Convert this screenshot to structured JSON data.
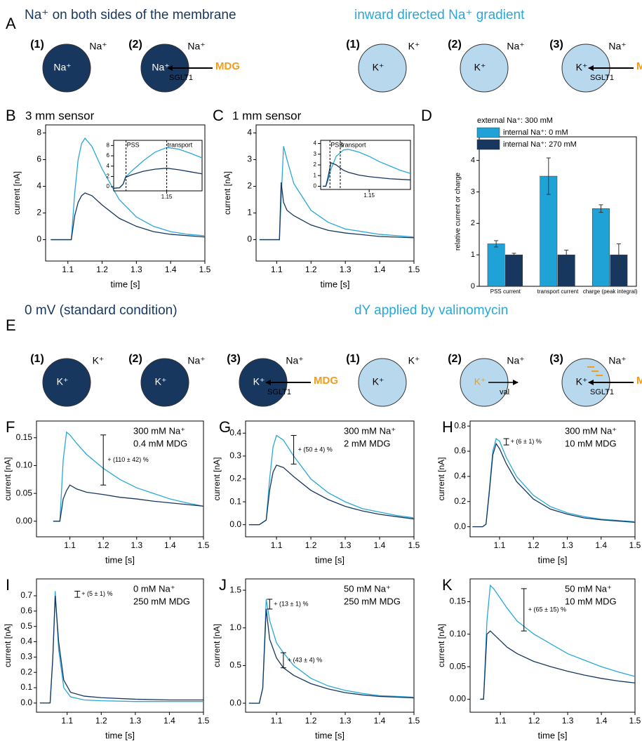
{
  "diagram_rows": [
    {
      "label": "A",
      "groups": [
        {
          "title": "Na⁺ on both sides of the membrane",
          "title_color": "#17375e",
          "cells": [
            {
              "number": "(1)",
              "outside": "Na⁺",
              "inside": "Na⁺",
              "fill": "#17375e",
              "inside_color": "#ffffff"
            },
            {
              "number": "(2)",
              "outside": "Na⁺",
              "inside": "Na⁺",
              "fill": "#17375e",
              "inside_color": "#ffffff",
              "substrate": "MDG",
              "carrier": "SGLT1"
            }
          ]
        },
        {
          "title": "inward directed Na⁺ gradient",
          "title_color": "#29a8d8",
          "cells": [
            {
              "number": "(1)",
              "outside": "K⁺",
              "inside": "K⁺",
              "fill": "#b8d8ee",
              "inside_color": "#000000"
            },
            {
              "number": "(2)",
              "outside": "Na⁺",
              "inside": "K⁺",
              "fill": "#b8d8ee",
              "inside_color": "#000000"
            },
            {
              "number": "(3)",
              "outside": "Na⁺",
              "inside": "K⁺",
              "fill": "#b8d8ee",
              "inside_color": "#000000",
              "substrate": "MDG",
              "carrier": "SGLT1"
            }
          ]
        }
      ]
    },
    {
      "label": "E",
      "groups": [
        {
          "title": "0 mV (standard condition)",
          "title_color": "#17375e",
          "cells": [
            {
              "number": "(1)",
              "outside": "K⁺",
              "inside": "K⁺",
              "fill": "#17375e",
              "inside_color": "#ffffff"
            },
            {
              "number": "(2)",
              "outside": "Na⁺",
              "inside": "K⁺",
              "fill": "#17375e",
              "inside_color": "#ffffff"
            },
            {
              "number": "(3)",
              "outside": "Na⁺",
              "inside": "K⁺",
              "fill": "#17375e",
              "inside_color": "#ffffff",
              "substrate": "MDG",
              "carrier": "SGLT1"
            }
          ]
        },
        {
          "title": "dY applied by valinomycin",
          "title_color": "#29a8d8",
          "cells": [
            {
              "number": "(1)",
              "outside": "K⁺",
              "inside": "K⁺",
              "fill": "#b8d8ee",
              "inside_color": "#000000"
            },
            {
              "number": "(2)",
              "outside": "Na⁺",
              "inside": "K⁺",
              "fill": "#b8d8ee",
              "inside_color": "#f39c1a",
              "carrier": "val",
              "direction": "out"
            },
            {
              "number": "(3)",
              "outside": "Na⁺",
              "inside": "K⁺",
              "fill": "#b8d8ee",
              "inside_color": "#000000",
              "substrate": "MDG",
              "carrier": "SGLT1",
              "surface_charge_color": "#f39c1a"
            }
          ]
        }
      ]
    }
  ],
  "substrate_color": "#f39c1a",
  "chart_data": [
    {
      "type": "line",
      "label": "B",
      "title": "3 mm sensor",
      "xlabel": "time [s]",
      "ylabel": "current [nA]",
      "xlim": [
        1.035,
        1.5
      ],
      "ylim": [
        -1.6,
        8.6
      ],
      "xticks": [
        1.1,
        1.2,
        1.3,
        1.4,
        1.5
      ],
      "yticks": [
        0,
        2,
        4,
        6,
        8
      ],
      "x": [
        1.05,
        1.1,
        1.11,
        1.12,
        1.13,
        1.14,
        1.15,
        1.17,
        1.2,
        1.25,
        1.3,
        1.35,
        1.4,
        1.45,
        1.5
      ],
      "series": [
        {
          "color": "#29a8d8",
          "values": [
            0,
            0,
            0,
            3.5,
            6,
            7.2,
            7.6,
            7,
            5.3,
            3,
            1.7,
            1,
            0.6,
            0.4,
            0.3
          ]
        },
        {
          "color": "#17375e",
          "values": [
            0,
            0,
            0,
            1.8,
            2.8,
            3.3,
            3.5,
            3.3,
            2.6,
            1.6,
            1,
            0.6,
            0.4,
            0.3,
            0.2
          ]
        }
      ],
      "inset": {
        "type": "line",
        "xlim": [
          1.105,
          1.18
        ],
        "ylim": [
          -0.8,
          9
        ],
        "xticks": [
          1.15
        ],
        "yticks": [
          0,
          2,
          4,
          6,
          8
        ],
        "x": [
          1.105,
          1.11,
          1.113,
          1.115,
          1.12,
          1.13,
          1.14,
          1.15,
          1.16,
          1.17,
          1.18
        ],
        "series": [
          {
            "color": "#29a8d8",
            "values": [
              -0.3,
              -0.2,
              0.5,
              1.8,
              3,
              5,
              6.7,
              7.6,
              7.3,
              6.5,
              5.6
            ]
          },
          {
            "color": "#17375e",
            "values": [
              -0.3,
              -0.2,
              0.5,
              1.8,
              2.3,
              3,
              3.4,
              3.6,
              3.3,
              2.9,
              2.5
            ]
          }
        ],
        "vlines": [
          {
            "x": 1.1155,
            "text": "PSS"
          },
          {
            "x": 1.15,
            "text": "transport"
          }
        ]
      }
    },
    {
      "type": "line",
      "label": "C",
      "title": "1 mm sensor",
      "xlabel": "time [s]",
      "ylabel": "current [nA]",
      "xlim": [
        1.04,
        1.5
      ],
      "ylim": [
        -0.8,
        4.3
      ],
      "xticks": [
        1.1,
        1.2,
        1.3,
        1.4,
        1.5
      ],
      "yticks": [
        0,
        1,
        2,
        3,
        4
      ],
      "x": [
        1.05,
        1.1,
        1.108,
        1.113,
        1.12,
        1.13,
        1.15,
        1.2,
        1.25,
        1.3,
        1.4,
        1.5
      ],
      "series": [
        {
          "color": "#29a8d8",
          "values": [
            0,
            0,
            0,
            1.5,
            3.5,
            3.0,
            2.1,
            1.1,
            0.65,
            0.4,
            0.2,
            0.1
          ]
        },
        {
          "color": "#17375e",
          "values": [
            0,
            0,
            0,
            2.15,
            1.4,
            1.1,
            0.9,
            0.55,
            0.35,
            0.25,
            0.12,
            0.07
          ]
        }
      ],
      "inset": {
        "type": "line",
        "xlim": [
          1.103,
          1.19
        ],
        "ylim": [
          -0.3,
          4.3
        ],
        "xticks": [
          1.15
        ],
        "yticks": [
          0,
          1,
          2,
          3,
          4
        ],
        "x": [
          1.105,
          1.108,
          1.11,
          1.113,
          1.118,
          1.125,
          1.13,
          1.14,
          1.15,
          1.16,
          1.17,
          1.18,
          1.19
        ],
        "series": [
          {
            "color": "#29a8d8",
            "values": [
              0,
              0,
              0.5,
              1.6,
              2.8,
              3.4,
              3.45,
              3.2,
              2.8,
              2.3,
              1.9,
              1.5,
              1.2
            ]
          },
          {
            "color": "#17375e",
            "values": [
              0,
              0,
              0.8,
              2.2,
              2.0,
              1.5,
              1.3,
              1.05,
              0.9,
              0.8,
              0.7,
              0.65,
              0.6
            ]
          }
        ],
        "vlines": [
          {
            "x": 1.112,
            "text": "PSS"
          },
          {
            "x": 1.122,
            "text": "transport"
          }
        ]
      }
    },
    {
      "type": "bar",
      "label": "D",
      "ylabel": "relative current or charge",
      "legend_title": "external Na⁺: 300 mM",
      "categories": [
        "PSS current",
        "transport current",
        "charge (peak integral)"
      ],
      "ylim": [
        0,
        4.75
      ],
      "yticks": [
        0,
        1,
        2,
        3,
        4
      ],
      "series": [
        {
          "name": "internal Na⁺: 0 mM",
          "color": "#1fa3d6",
          "values": [
            1.35,
            3.5,
            2.47
          ],
          "errors": [
            0.1,
            0.58,
            0.12
          ]
        },
        {
          "name": "internal Na⁺: 270 mM",
          "color": "#17375e",
          "values": [
            1.0,
            1.0,
            1.0
          ],
          "errors": [
            0.05,
            0.15,
            0.35
          ]
        }
      ]
    },
    {
      "type": "line",
      "label": "F",
      "xlabel": "time [s]",
      "ylabel": "current [nA]",
      "conditions": [
        "300 mM Na⁺",
        "0.4 mM MDG"
      ],
      "xlim": [
        1.0,
        1.5
      ],
      "ylim": [
        -0.028,
        0.18
      ],
      "xticks": [
        1.1,
        1.2,
        1.3,
        1.4,
        1.5
      ],
      "yticks": [
        {
          "value": 0,
          "label": "0.00"
        },
        0.05,
        {
          "value": 0.1,
          "label": "0.10"
        },
        0.15
      ],
      "x": [
        1.05,
        1.07,
        1.08,
        1.09,
        1.1,
        1.12,
        1.15,
        1.2,
        1.25,
        1.3,
        1.35,
        1.4,
        1.45,
        1.5
      ],
      "series": [
        {
          "color": "#29a8d8",
          "values": [
            0,
            0,
            0.11,
            0.16,
            0.155,
            0.14,
            0.12,
            0.095,
            0.075,
            0.06,
            0.05,
            0.04,
            0.033,
            0.027
          ]
        },
        {
          "color": "#17375e",
          "values": [
            0,
            0,
            0.04,
            0.055,
            0.065,
            0.058,
            0.052,
            0.048,
            0.043,
            0.04,
            0.036,
            0.033,
            0.03,
            0.027
          ]
        }
      ],
      "annotations": [
        {
          "x": 1.2,
          "low": 0.065,
          "high": 0.155,
          "text": "+ (110 ± 42) %"
        }
      ]
    },
    {
      "type": "line",
      "label": "G",
      "xlabel": "time [s]",
      "ylabel": "current [nA]",
      "conditions": [
        "300 mM Na⁺",
        "2 mM MDG"
      ],
      "xlim": [
        1.01,
        1.5
      ],
      "ylim": [
        -0.053,
        0.453
      ],
      "xticks": [
        1.1,
        1.2,
        1.3,
        1.4,
        1.5
      ],
      "yticks": [
        {
          "value": 0,
          "label": "0.0"
        },
        0.1,
        0.2,
        0.3,
        0.4
      ],
      "x": [
        1.02,
        1.05,
        1.07,
        1.08,
        1.09,
        1.1,
        1.12,
        1.15,
        1.2,
        1.25,
        1.3,
        1.35,
        1.4,
        1.45,
        1.5
      ],
      "series": [
        {
          "color": "#29a8d8",
          "values": [
            0,
            0,
            0.02,
            0.2,
            0.34,
            0.39,
            0.37,
            0.3,
            0.2,
            0.14,
            0.1,
            0.07,
            0.055,
            0.04,
            0.03
          ]
        },
        {
          "color": "#17375e",
          "values": [
            0,
            0,
            0.02,
            0.15,
            0.23,
            0.26,
            0.25,
            0.21,
            0.15,
            0.11,
            0.08,
            0.06,
            0.045,
            0.035,
            0.025
          ]
        }
      ],
      "annotations": [
        {
          "x": 1.15,
          "low": 0.265,
          "high": 0.39,
          "text": "+ (50 ± 4) %"
        }
      ]
    },
    {
      "type": "line",
      "label": "H",
      "xlabel": "time [s]",
      "ylabel": "current [nA]",
      "conditions": [
        "300 mM Na⁺",
        "10 mM MDG"
      ],
      "xlim": [
        1.013,
        1.5
      ],
      "ylim": [
        -0.08,
        0.84
      ],
      "xticks": [
        1.1,
        1.2,
        1.3,
        1.4,
        1.5
      ],
      "yticks": [
        {
          "value": 0,
          "label": "0.0"
        },
        0.2,
        0.4,
        0.6,
        0.8
      ],
      "x": [
        1.02,
        1.05,
        1.06,
        1.07,
        1.08,
        1.09,
        1.1,
        1.12,
        1.15,
        1.2,
        1.25,
        1.3,
        1.35,
        1.4,
        1.45,
        1.5
      ],
      "series": [
        {
          "color": "#29a8d8",
          "values": [
            0,
            0,
            0.02,
            0.3,
            0.6,
            0.7,
            0.68,
            0.55,
            0.4,
            0.25,
            0.16,
            0.11,
            0.08,
            0.06,
            0.05,
            0.04
          ]
        },
        {
          "color": "#17375e",
          "values": [
            0,
            0,
            0.02,
            0.28,
            0.57,
            0.66,
            0.62,
            0.5,
            0.36,
            0.22,
            0.14,
            0.1,
            0.07,
            0.055,
            0.045,
            0.035
          ]
        }
      ],
      "annotations": [
        {
          "x": 1.12,
          "low": 0.65,
          "high": 0.7,
          "text": "+ (6 ± 1) %"
        }
      ]
    },
    {
      "type": "line",
      "label": "I",
      "xlabel": "time [s]",
      "ylabel": "current [nA]",
      "conditions": [
        "0 mM Na⁺",
        "250 mM MDG"
      ],
      "xlim": [
        1.01,
        1.5
      ],
      "ylim": [
        -0.06,
        0.81
      ],
      "xticks": [
        1.1,
        1.2,
        1.3,
        1.4,
        1.5
      ],
      "yticks": [
        {
          "value": 0,
          "label": "0.0"
        },
        0.1,
        0.2,
        0.3,
        0.4,
        0.5,
        0.6,
        0.7
      ],
      "x": [
        1.02,
        1.05,
        1.058,
        1.065,
        1.075,
        1.09,
        1.11,
        1.15,
        1.2,
        1.3,
        1.4,
        1.5
      ],
      "series": [
        {
          "color": "#29a8d8",
          "values": [
            0,
            0,
            0.3,
            0.73,
            0.35,
            0.1,
            0.04,
            0.02,
            0.015,
            0.01,
            0.01,
            0.01
          ]
        },
        {
          "color": "#17375e",
          "values": [
            0,
            0,
            0.3,
            0.7,
            0.4,
            0.15,
            0.07,
            0.045,
            0.035,
            0.025,
            0.02,
            0.02
          ]
        }
      ],
      "annotations": [
        {
          "x": 1.13,
          "low": 0.69,
          "high": 0.73,
          "text": "+ (5 ± 1) %"
        }
      ]
    },
    {
      "type": "line",
      "label": "J",
      "xlabel": "time [s]",
      "ylabel": "current [nA]",
      "conditions": [
        "50 mM Na⁺",
        "250 mM MDG"
      ],
      "xlim": [
        1.01,
        1.5
      ],
      "ylim": [
        -0.12,
        1.65
      ],
      "xticks": [
        1.1,
        1.2,
        1.3,
        1.4,
        1.5
      ],
      "yticks": [
        {
          "value": 0,
          "label": "0.0"
        },
        0.5,
        {
          "value": 1,
          "label": "1.0"
        },
        1.5
      ],
      "x": [
        1.02,
        1.05,
        1.06,
        1.07,
        1.08,
        1.1,
        1.12,
        1.15,
        1.2,
        1.25,
        1.3,
        1.35,
        1.4,
        1.45,
        1.5
      ],
      "series": [
        {
          "color": "#29a8d8",
          "values": [
            0,
            0,
            0.2,
            1.38,
            1.1,
            0.8,
            0.67,
            0.5,
            0.33,
            0.23,
            0.17,
            0.13,
            0.1,
            0.09,
            0.08
          ]
        },
        {
          "color": "#17375e",
          "values": [
            0,
            0,
            0.2,
            1.25,
            0.85,
            0.6,
            0.47,
            0.37,
            0.26,
            0.19,
            0.14,
            0.11,
            0.09,
            0.08,
            0.07
          ]
        }
      ],
      "annotations": [
        {
          "x": 1.08,
          "low": 1.25,
          "high": 1.38,
          "text": "+ (13 ± 1) %"
        },
        {
          "x": 1.12,
          "low": 0.47,
          "high": 0.67,
          "text": "+ (43 ± 4) %"
        }
      ]
    },
    {
      "type": "line",
      "label": "K",
      "xlabel": "time [s]",
      "ylabel": "current [nA]",
      "conditions": [
        "50 mM Na⁺",
        "10 mM MDG"
      ],
      "xlim": [
        1.01,
        1.5
      ],
      "ylim": [
        -0.02,
        0.185
      ],
      "xticks": [
        1.1,
        1.2,
        1.3,
        1.4,
        1.5
      ],
      "yticks": [
        {
          "value": 0,
          "label": "0.00"
        },
        0.05,
        {
          "value": 0.1,
          "label": "0.10"
        },
        0.15
      ],
      "x": [
        1.04,
        1.05,
        1.06,
        1.07,
        1.08,
        1.1,
        1.12,
        1.15,
        1.2,
        1.25,
        1.3,
        1.35,
        1.4,
        1.45,
        1.5
      ],
      "series": [
        {
          "color": "#29a8d8",
          "values": [
            0,
            0,
            0.12,
            0.175,
            0.17,
            0.155,
            0.14,
            0.12,
            0.1,
            0.085,
            0.07,
            0.06,
            0.05,
            0.042,
            0.035
          ]
        },
        {
          "color": "#17375e",
          "values": [
            0,
            0,
            0.1,
            0.105,
            0.1,
            0.09,
            0.08,
            0.07,
            0.058,
            0.05,
            0.043,
            0.037,
            0.032,
            0.028,
            0.025
          ]
        }
      ],
      "annotations": [
        {
          "x": 1.17,
          "low": 0.105,
          "high": 0.17,
          "text": "+ (65 ± 15) %"
        }
      ]
    }
  ]
}
